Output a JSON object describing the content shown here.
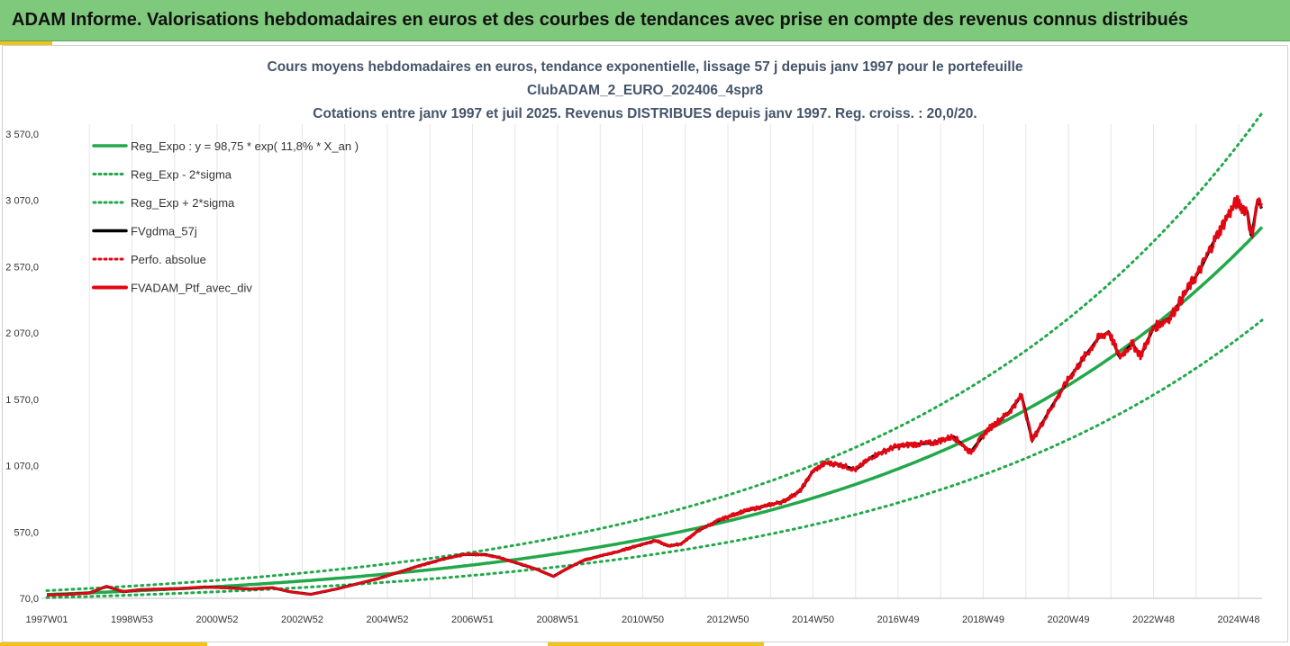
{
  "header": {
    "title": "ADAM Informe. Valorisations hebdomadaires en euros et des courbes de tendances avec prise en compte des revenus connus distribués"
  },
  "colors": {
    "header_bg": "#7ec97b",
    "accent": "#f2c21b",
    "trend": "#22a84a",
    "smooth": "#000000",
    "portfolio": "#e30613",
    "title_text": "#44546a"
  },
  "chart_data": {
    "type": "line",
    "title_lines": [
      "Cours moyens hebdomadaires  en euros, tendance exponentielle, lissage 57 j depuis janv 1997 pour le portefeuille",
      "ClubADAM_2_EURO_202406_4spr8",
      "Cotations  entre janv 1997 et juil 2025. Revenus DISTRIBUES depuis janv 1997. Reg. croiss. : 20,0/20."
    ],
    "x_ticks": [
      "1997W01",
      "1998W53",
      "2000W52",
      "2002W52",
      "2004W52",
      "2006W51",
      "2008W51",
      "2010W50",
      "2012W50",
      "2014W50",
      "2016W49",
      "2018W49",
      "2020W49",
      "2022W48",
      "2024W48"
    ],
    "y_ticks": [
      "70,0",
      "570,0",
      "1 070,0",
      "1 570,0",
      "2 070,0",
      "2 570,0",
      "3 070,0",
      "3 570,0"
    ],
    "xlim": [
      1997.0,
      2025.55
    ],
    "ylim": [
      70,
      3570
    ],
    "grid": "vertical",
    "legend_position": "top-left",
    "trend": {
      "a": 98.75,
      "rate": 0.118,
      "sigma_factor": 0.165
    },
    "series": [
      {
        "name": "Reg_Expo : y = 98,75 * exp( 11,8% *  X_an )",
        "role": "trend",
        "style": "solid",
        "color": "#22a84a"
      },
      {
        "name": "Reg_Exp - 2*sigma",
        "role": "lower",
        "style": "dotted",
        "color": "#22a84a"
      },
      {
        "name": "Reg_Exp + 2*sigma",
        "role": "upper",
        "style": "dotted",
        "color": "#22a84a"
      },
      {
        "name": "FVgdma_57j",
        "role": "smooth",
        "style": "solid",
        "color": "#000000"
      },
      {
        "name": "Perfo. absolue",
        "role": "absolute",
        "style": "dotted",
        "color": "#e30613"
      },
      {
        "name": "FVADAM_Ptf_avec_div",
        "role": "portfolio",
        "style": "solid",
        "color": "#e30613",
        "points": [
          [
            1997.0,
            95
          ],
          [
            1997.5,
            100
          ],
          [
            1998.0,
            110
          ],
          [
            1998.4,
            160
          ],
          [
            1998.8,
            120
          ],
          [
            1999.2,
            135
          ],
          [
            1999.7,
            140
          ],
          [
            2000.2,
            145
          ],
          [
            2000.7,
            155
          ],
          [
            2001.2,
            150
          ],
          [
            2001.8,
            140
          ],
          [
            2002.3,
            150
          ],
          [
            2002.7,
            120
          ],
          [
            2003.2,
            100
          ],
          [
            2003.8,
            140
          ],
          [
            2004.3,
            180
          ],
          [
            2004.8,
            220
          ],
          [
            2005.3,
            270
          ],
          [
            2005.8,
            320
          ],
          [
            2006.3,
            365
          ],
          [
            2006.8,
            400
          ],
          [
            2007.3,
            400
          ],
          [
            2007.6,
            380
          ],
          [
            2008.0,
            340
          ],
          [
            2008.5,
            290
          ],
          [
            2008.9,
            235
          ],
          [
            2009.2,
            290
          ],
          [
            2009.6,
            355
          ],
          [
            2010.0,
            390
          ],
          [
            2010.4,
            420
          ],
          [
            2010.8,
            460
          ],
          [
            2011.3,
            505
          ],
          [
            2011.6,
            465
          ],
          [
            2011.9,
            480
          ],
          [
            2012.3,
            580
          ],
          [
            2012.8,
            660
          ],
          [
            2013.3,
            720
          ],
          [
            2013.8,
            760
          ],
          [
            2014.3,
            800
          ],
          [
            2014.7,
            880
          ],
          [
            2015.0,
            1030
          ],
          [
            2015.3,
            1090
          ],
          [
            2015.6,
            1080
          ],
          [
            2016.0,
            1040
          ],
          [
            2016.4,
            1140
          ],
          [
            2016.9,
            1210
          ],
          [
            2017.3,
            1230
          ],
          [
            2017.8,
            1240
          ],
          [
            2018.3,
            1290
          ],
          [
            2018.7,
            1170
          ],
          [
            2019.1,
            1340
          ],
          [
            2019.6,
            1470
          ],
          [
            2019.9,
            1600
          ],
          [
            2020.15,
            1260
          ],
          [
            2020.6,
            1510
          ],
          [
            2021.0,
            1720
          ],
          [
            2021.4,
            1900
          ],
          [
            2021.7,
            2030
          ],
          [
            2021.95,
            2080
          ],
          [
            2022.2,
            1890
          ],
          [
            2022.5,
            1990
          ],
          [
            2022.7,
            1900
          ],
          [
            2023.0,
            2110
          ],
          [
            2023.4,
            2190
          ],
          [
            2023.8,
            2400
          ],
          [
            2024.1,
            2550
          ],
          [
            2024.4,
            2750
          ],
          [
            2024.7,
            2930
          ],
          [
            2024.95,
            3060
          ],
          [
            2025.2,
            2990
          ],
          [
            2025.3,
            2790
          ],
          [
            2025.45,
            3080
          ],
          [
            2025.55,
            3000
          ]
        ]
      }
    ]
  }
}
